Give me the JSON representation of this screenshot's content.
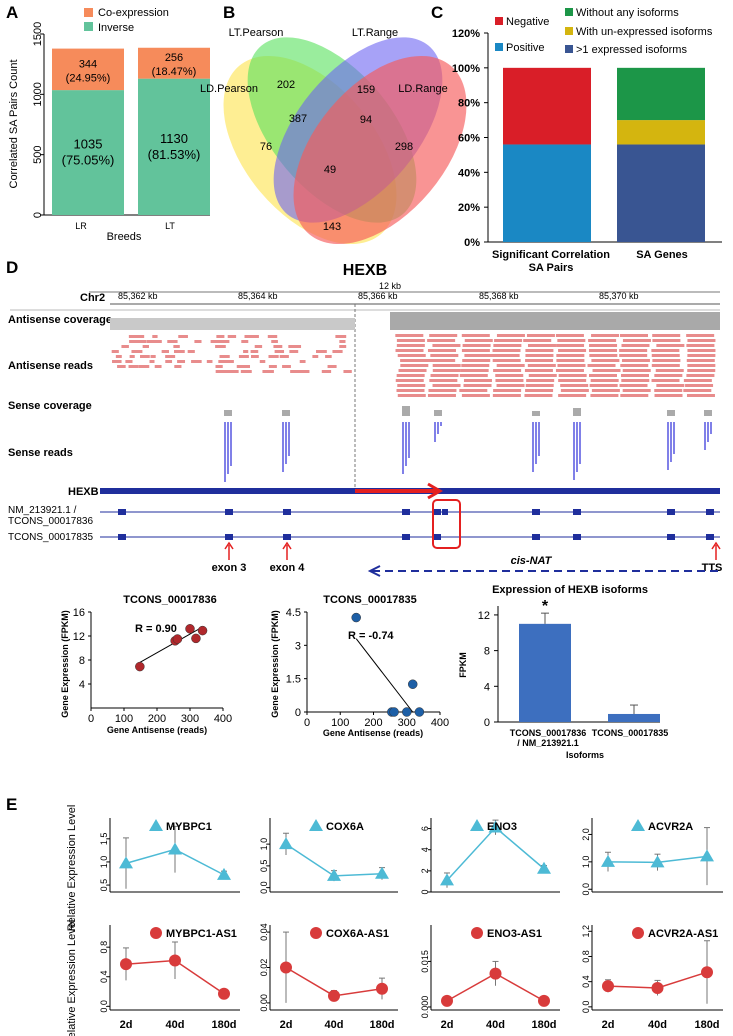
{
  "panels": {
    "A": "A",
    "B": "B",
    "C": "C",
    "D": "D",
    "E": "E"
  },
  "chart_data": [
    {
      "id": "A",
      "type": "bar",
      "stacked": true,
      "ylabel": "Correlated SA Pairs Count",
      "xlabel": "Breeds",
      "categories": [
        "LR",
        "LT"
      ],
      "ylim": [
        0,
        1500
      ],
      "yticks": [
        0,
        500,
        1000,
        1500
      ],
      "legend": [
        "Co-expression",
        "Inverse"
      ],
      "colors": {
        "co": "#f68b5b",
        "inv": "#62c39b"
      },
      "series": [
        {
          "name": "Inverse",
          "values": [
            1035,
            1130
          ],
          "labels": [
            "1035",
            "1130"
          ],
          "pcts": [
            "(75.05%)",
            "(81.53%)"
          ]
        },
        {
          "name": "Co-expression",
          "values": [
            344,
            256
          ],
          "labels": [
            "344",
            "256"
          ],
          "pcts": [
            "(24.95%)",
            "(18.47%)"
          ]
        }
      ]
    },
    {
      "id": "B",
      "type": "venn",
      "sets": [
        "LT.Pearson",
        "LT.Range",
        "LD.Pearson",
        "LD.Range"
      ],
      "regions": {
        "ldp_only": "76",
        "ltp_only": "202",
        "ltr_only": "159",
        "ldr_only": "298",
        "ldp_ltp": "387",
        "ltr_ldr": "94",
        "all": "49",
        "ldp_ldr": "143"
      }
    },
    {
      "id": "C",
      "type": "bar",
      "stacked": true,
      "percent": true,
      "categories": [
        "Significant Correlation\nSA Pairs",
        "SA Genes"
      ],
      "cat_lines": [
        [
          "Significant Correlation",
          "SA Pairs"
        ],
        [
          "SA Genes"
        ]
      ],
      "yticks": [
        "0%",
        "20%",
        "40%",
        "60%",
        "80%",
        "100%",
        "120%"
      ],
      "ylim": [
        0,
        120
      ],
      "legend": [
        "Negative",
        "Positive",
        "Without any isoforms",
        "With un-expressed isoforms",
        ">1 expressed isoforms"
      ],
      "pairs": {
        "Positive": 56,
        "Negative": 44
      },
      "genes": {
        ">1 expressed isoforms": 56,
        "With un-expressed isoforms": 14,
        "Without any isoforms": 30
      }
    },
    {
      "id": "D_track",
      "type": "other",
      "gene": "HEXB",
      "scale": "12 kb",
      "chrom": "Chr2",
      "ticks": [
        "85,362 kb",
        "85,364 kb",
        "85,366 kb",
        "85,368 kb",
        "85,370 kb"
      ],
      "tracks": [
        "Antisense coverage",
        "Antisense reads",
        "Sense coverage",
        "Sense reads",
        "HEXB",
        "NM_213921.1 /",
        "TCONS_00017836",
        "TCONS_00017835"
      ],
      "annotations": [
        "exon 3",
        "exon 4",
        "cis-NAT",
        "TTS"
      ]
    },
    {
      "id": "D1",
      "type": "scatter",
      "title": "TCONS_00017836",
      "r": "R = 0.90",
      "xlabel": "Gene Antisense (reads)",
      "ylabel": "Gene Expression (FPKM)",
      "xticks": [
        0,
        100,
        200,
        300,
        400
      ],
      "yticks": [
        4,
        8,
        12,
        16
      ],
      "xlim": [
        0,
        400
      ],
      "ylim": [
        0,
        16
      ],
      "points": [
        [
          148,
          6.9
        ],
        [
          255,
          11.2
        ],
        [
          262,
          11.5
        ],
        [
          300,
          13.2
        ],
        [
          318,
          11.6
        ],
        [
          338,
          12.9
        ]
      ],
      "fit": [
        [
          148,
          7.6
        ],
        [
          338,
          13.5
        ]
      ]
    },
    {
      "id": "D2",
      "type": "scatter",
      "title": "TCONS_00017835",
      "r": "R = -0.74",
      "xlabel": "Gene Antisense (reads)",
      "ylabel": "Gene Expression (FPKM)",
      "xticks": [
        0,
        100,
        200,
        300,
        400
      ],
      "yticks": [
        "0",
        "1.5",
        "3",
        "4.5"
      ],
      "xlim": [
        0,
        400
      ],
      "ylim": [
        0,
        4.5
      ],
      "points": [
        [
          148,
          4.25
        ],
        [
          255,
          0
        ],
        [
          300,
          0
        ],
        [
          318,
          1.25
        ],
        [
          338,
          0
        ],
        [
          262,
          0
        ]
      ],
      "fit": [
        [
          148,
          3.3
        ],
        [
          318,
          0
        ]
      ]
    },
    {
      "id": "D3",
      "type": "bar",
      "title": "Expression of HEXB isoforms",
      "ylabel": "FPKM",
      "xlabel": "Isoforms",
      "categories": [
        "TCONS_00017836\n/ NM_213921.1",
        "TCONS_00017835"
      ],
      "cat_lines": [
        [
          "TCONS_00017836",
          "/ NM_213921.1"
        ],
        [
          "TCONS_00017835"
        ]
      ],
      "values": [
        11,
        0.9
      ],
      "err": [
        1.2,
        1.0
      ],
      "yticks": [
        0,
        4,
        8,
        12
      ],
      "ylim": [
        0,
        13
      ],
      "sig": "*"
    },
    {
      "id": "E",
      "type": "line",
      "ylabel": "Relative Expression Level",
      "x": [
        "2d",
        "40d",
        "180d"
      ],
      "series": [
        {
          "name": "MYBPC1",
          "values": [
            0.97,
            1.27,
            0.72
          ],
          "err": [
            0.55,
            0.5,
            0.08
          ],
          "yticks": [
            "0.5",
            "1.0",
            "1.5"
          ],
          "tickvals": [
            0.5,
            1.0,
            1.5
          ],
          "ylim": [
            0.35,
            1.95
          ]
        },
        {
          "name": "COX6A",
          "values": [
            1.0,
            0.27,
            0.32
          ],
          "err": [
            0.25,
            0.12,
            0.14
          ],
          "yticks": [
            "0.0",
            "0.5",
            "1.0"
          ],
          "tickvals": [
            0,
            0.5,
            1.0
          ],
          "ylim": [
            -0.1,
            1.6
          ]
        },
        {
          "name": "ENO3",
          "values": [
            1.1,
            6.1,
            2.2
          ],
          "err": [
            0.7,
            0.7,
            0.3
          ],
          "yticks": [
            "0",
            "2",
            "4",
            "6"
          ],
          "tickvals": [
            0,
            2,
            4,
            6
          ],
          "ylim": [
            0,
            7
          ]
        },
        {
          "name": "ACVR2A",
          "values": [
            1.0,
            0.98,
            1.2
          ],
          "err": [
            0.35,
            0.3,
            1.05
          ],
          "yticks": [
            "0.0",
            "1.0",
            "2.0"
          ],
          "tickvals": [
            0,
            1,
            2
          ],
          "ylim": [
            -0.1,
            2.6
          ]
        },
        {
          "name": "MYBPC1-AS1",
          "values": [
            0.57,
            0.62,
            0.17
          ],
          "err": [
            0.22,
            0.25,
            0.03
          ],
          "yticks": [
            "0.0",
            "0.4",
            "0.8"
          ],
          "tickvals": [
            0,
            0.4,
            0.8
          ],
          "ylim": [
            -0.05,
            1.1
          ]
        },
        {
          "name": "COX6A-AS1",
          "values": [
            0.02,
            0.004,
            0.008
          ],
          "err": [
            0.02,
            0.003,
            0.006
          ],
          "yticks": [
            "0.00",
            "0.02",
            "0.04"
          ],
          "tickvals": [
            0,
            0.02,
            0.04
          ],
          "ylim": [
            -0.004,
            0.044
          ]
        },
        {
          "name": "ENO3-AS1",
          "values": [
            0.002,
            0.011,
            0.002
          ],
          "err": [
            0.001,
            0.004,
            0.001
          ],
          "yticks": [
            "0.000",
            "0.015"
          ],
          "tickvals": [
            0,
            0.015
          ],
          "ylim": [
            -0.001,
            0.027
          ]
        },
        {
          "name": "ACVR2A-AS1",
          "values": [
            0.33,
            0.3,
            0.55
          ],
          "err": [
            0.1,
            0.12,
            0.5
          ],
          "yticks": [
            "0.0",
            "0.4",
            "0.8",
            "1.2"
          ],
          "tickvals": [
            0,
            0.4,
            0.8,
            1.2
          ],
          "ylim": [
            -0.05,
            1.3
          ]
        }
      ]
    }
  ]
}
